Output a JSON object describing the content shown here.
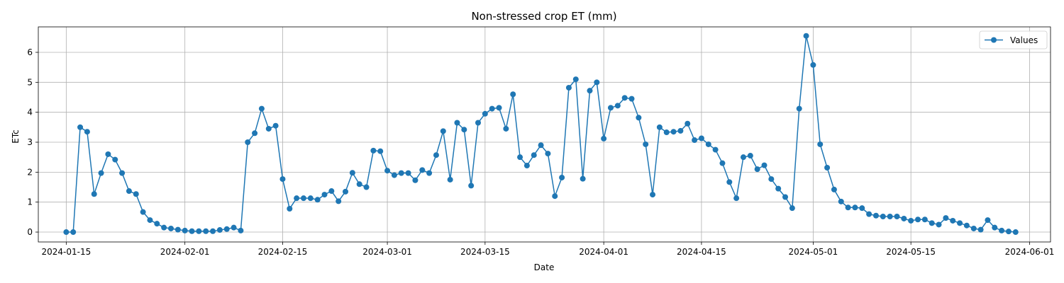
{
  "chart_data": {
    "type": "line",
    "title": "Non-stressed crop ET (mm)",
    "xlabel": "Date",
    "ylabel": "ETc",
    "grid": true,
    "legend_placement": "top-right",
    "xlim": [
      "2024-01-11",
      "2024-06-04"
    ],
    "ylim": [
      -0.33,
      6.85
    ],
    "x_ticks": [
      "2024-01-15",
      "2024-02-01",
      "2024-02-15",
      "2024-03-01",
      "2024-03-15",
      "2024-04-01",
      "2024-04-15",
      "2024-05-01",
      "2024-05-15",
      "2024-06-01"
    ],
    "y_ticks": [
      0,
      1,
      2,
      3,
      4,
      5,
      6
    ],
    "series": [
      {
        "name": "Values",
        "color": "#1f77b4",
        "marker": "circle",
        "x_start": "2024-01-15",
        "x_step_days": 1,
        "y": [
          0.0,
          0.0,
          3.5,
          3.35,
          1.27,
          1.97,
          2.6,
          2.42,
          1.97,
          1.37,
          1.27,
          0.67,
          0.4,
          0.28,
          0.15,
          0.12,
          0.08,
          0.05,
          0.03,
          0.03,
          0.03,
          0.03,
          0.07,
          0.1,
          0.15,
          0.05,
          3.0,
          3.3,
          4.12,
          3.45,
          3.55,
          1.77,
          0.78,
          1.13,
          1.13,
          1.13,
          1.08,
          1.25,
          1.37,
          1.03,
          1.35,
          1.98,
          1.6,
          1.5,
          2.72,
          2.7,
          2.05,
          1.9,
          1.97,
          1.97,
          1.73,
          2.07,
          1.97,
          2.57,
          3.37,
          1.75,
          3.65,
          3.42,
          1.55,
          3.65,
          3.95,
          4.12,
          4.15,
          3.45,
          4.6,
          2.5,
          2.22,
          2.57,
          2.9,
          2.62,
          1.2,
          1.82,
          4.82,
          5.1,
          1.78,
          4.72,
          5.0,
          3.12,
          4.15,
          4.22,
          4.48,
          4.45,
          3.82,
          2.93,
          1.25,
          3.5,
          3.33,
          3.35,
          3.38,
          3.62,
          3.07,
          3.13,
          2.93,
          2.75,
          2.3,
          1.67,
          1.13,
          2.5,
          2.55,
          2.1,
          2.23,
          1.77,
          1.45,
          1.17,
          0.8,
          4.12,
          6.55,
          5.58,
          2.93,
          2.15,
          1.42,
          1.02,
          0.82,
          0.82,
          0.8,
          0.6,
          0.55,
          0.52,
          0.52,
          0.52,
          0.45,
          0.38,
          0.42,
          0.42,
          0.3,
          0.25,
          0.47,
          0.38,
          0.3,
          0.22,
          0.12,
          0.08,
          0.4,
          0.15,
          0.05,
          0.02,
          0.0
        ]
      }
    ]
  }
}
